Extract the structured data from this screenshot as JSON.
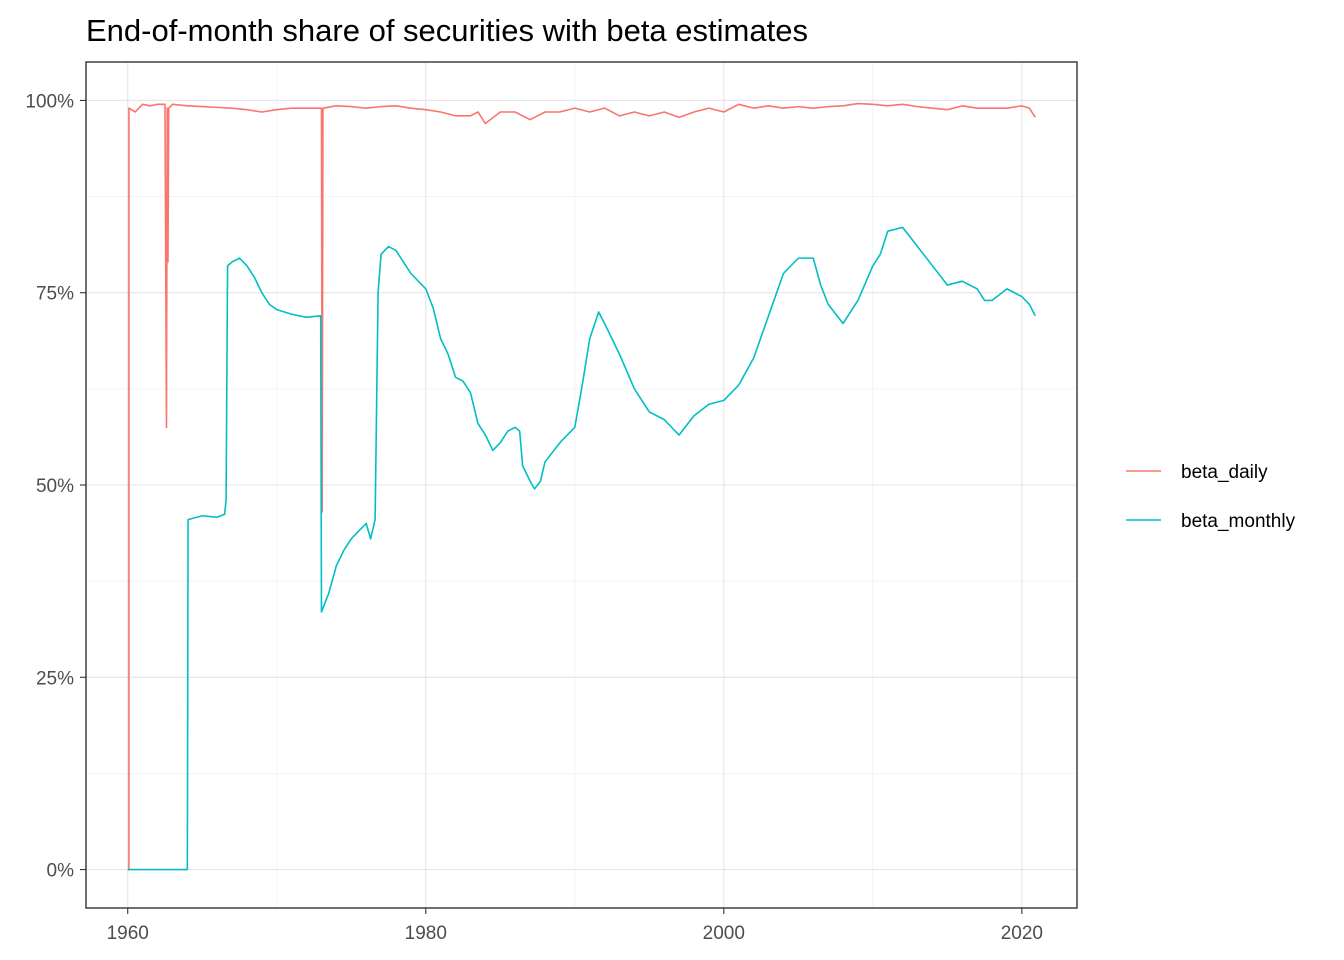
{
  "chart_data": {
    "type": "line",
    "title": "End-of-month share of securities with beta estimates",
    "xlabel": "",
    "ylabel": "",
    "xlim": [
      1957.2,
      2023.7
    ],
    "ylim": [
      -0.05,
      1.05
    ],
    "x_ticks": [
      1960,
      1980,
      2000,
      2020
    ],
    "x_tick_labels": [
      "1960",
      "1980",
      "2000",
      "2020"
    ],
    "y_ticks": [
      0,
      0.25,
      0.5,
      0.75,
      1.0
    ],
    "y_tick_labels": [
      "0%",
      "25%",
      "50%",
      "75%",
      "100%"
    ],
    "grid": true,
    "legend_position": "right",
    "series": [
      {
        "name": "beta_daily",
        "color": "#F8766D",
        "points": [
          [
            1960.0,
            0.0
          ],
          [
            1960.08,
            0.0
          ],
          [
            1960.08,
            0.99
          ],
          [
            1960.5,
            0.985
          ],
          [
            1961.0,
            0.995
          ],
          [
            1961.5,
            0.993
          ],
          [
            1962.0,
            0.995
          ],
          [
            1962.5,
            0.995
          ],
          [
            1962.6,
            0.575
          ],
          [
            1962.65,
            0.99
          ],
          [
            1962.7,
            0.79
          ],
          [
            1962.75,
            0.99
          ],
          [
            1963.0,
            0.995
          ],
          [
            1964.0,
            0.993
          ],
          [
            1965.0,
            0.992
          ],
          [
            1966.0,
            0.991
          ],
          [
            1967.0,
            0.99
          ],
          [
            1968.0,
            0.988
          ],
          [
            1969.0,
            0.985
          ],
          [
            1970.0,
            0.988
          ],
          [
            1971.0,
            0.99
          ],
          [
            1972.0,
            0.99
          ],
          [
            1972.9,
            0.99
          ],
          [
            1973.0,
            0.99
          ],
          [
            1973.05,
            0.465
          ],
          [
            1973.1,
            0.99
          ],
          [
            1974.0,
            0.993
          ],
          [
            1975.0,
            0.992
          ],
          [
            1976.0,
            0.99
          ],
          [
            1977.0,
            0.992
          ],
          [
            1978.0,
            0.993
          ],
          [
            1979.0,
            0.99
          ],
          [
            1980.0,
            0.988
          ],
          [
            1981.0,
            0.985
          ],
          [
            1982.0,
            0.98
          ],
          [
            1983.0,
            0.98
          ],
          [
            1983.5,
            0.985
          ],
          [
            1984.0,
            0.97
          ],
          [
            1985.0,
            0.985
          ],
          [
            1986.0,
            0.985
          ],
          [
            1987.0,
            0.975
          ],
          [
            1988.0,
            0.985
          ],
          [
            1989.0,
            0.985
          ],
          [
            1990.0,
            0.99
          ],
          [
            1991.0,
            0.985
          ],
          [
            1992.0,
            0.99
          ],
          [
            1993.0,
            0.98
          ],
          [
            1994.0,
            0.985
          ],
          [
            1995.0,
            0.98
          ],
          [
            1996.0,
            0.985
          ],
          [
            1997.0,
            0.978
          ],
          [
            1998.0,
            0.985
          ],
          [
            1999.0,
            0.99
          ],
          [
            2000.0,
            0.985
          ],
          [
            2001.0,
            0.995
          ],
          [
            2002.0,
            0.99
          ],
          [
            2003.0,
            0.993
          ],
          [
            2004.0,
            0.99
          ],
          [
            2005.0,
            0.992
          ],
          [
            2006.0,
            0.99
          ],
          [
            2007.0,
            0.992
          ],
          [
            2008.0,
            0.993
          ],
          [
            2009.0,
            0.996
          ],
          [
            2010.0,
            0.995
          ],
          [
            2011.0,
            0.993
          ],
          [
            2012.0,
            0.995
          ],
          [
            2013.0,
            0.992
          ],
          [
            2014.0,
            0.99
          ],
          [
            2015.0,
            0.988
          ],
          [
            2016.0,
            0.993
          ],
          [
            2017.0,
            0.99
          ],
          [
            2018.0,
            0.99
          ],
          [
            2019.0,
            0.99
          ],
          [
            2020.0,
            0.993
          ],
          [
            2020.5,
            0.99
          ],
          [
            2020.9,
            0.978
          ]
        ]
      },
      {
        "name": "beta_monthly",
        "color": "#00BFC4",
        "points": [
          [
            1960.0,
            0.0
          ],
          [
            1963.9,
            0.0
          ],
          [
            1964.0,
            0.0
          ],
          [
            1964.05,
            0.455
          ],
          [
            1965.0,
            0.46
          ],
          [
            1966.0,
            0.458
          ],
          [
            1966.5,
            0.462
          ],
          [
            1966.6,
            0.48
          ],
          [
            1966.7,
            0.785
          ],
          [
            1967.0,
            0.79
          ],
          [
            1967.5,
            0.795
          ],
          [
            1968.0,
            0.785
          ],
          [
            1968.5,
            0.77
          ],
          [
            1969.0,
            0.75
          ],
          [
            1969.5,
            0.735
          ],
          [
            1970.0,
            0.728
          ],
          [
            1971.0,
            0.722
          ],
          [
            1972.0,
            0.718
          ],
          [
            1972.9,
            0.72
          ],
          [
            1972.95,
            0.72
          ],
          [
            1973.0,
            0.335
          ],
          [
            1973.5,
            0.36
          ],
          [
            1974.0,
            0.395
          ],
          [
            1974.5,
            0.415
          ],
          [
            1975.0,
            0.43
          ],
          [
            1976.0,
            0.45
          ],
          [
            1976.3,
            0.43
          ],
          [
            1976.6,
            0.455
          ],
          [
            1976.8,
            0.75
          ],
          [
            1977.0,
            0.8
          ],
          [
            1977.5,
            0.81
          ],
          [
            1978.0,
            0.805
          ],
          [
            1978.5,
            0.79
          ],
          [
            1979.0,
            0.775
          ],
          [
            1979.5,
            0.765
          ],
          [
            1980.0,
            0.755
          ],
          [
            1980.5,
            0.73
          ],
          [
            1981.0,
            0.69
          ],
          [
            1981.5,
            0.67
          ],
          [
            1982.0,
            0.64
          ],
          [
            1982.5,
            0.635
          ],
          [
            1983.0,
            0.62
          ],
          [
            1983.5,
            0.58
          ],
          [
            1984.0,
            0.565
          ],
          [
            1984.5,
            0.545
          ],
          [
            1985.0,
            0.555
          ],
          [
            1985.5,
            0.57
          ],
          [
            1986.0,
            0.575
          ],
          [
            1986.3,
            0.57
          ],
          [
            1986.5,
            0.525
          ],
          [
            1987.0,
            0.505
          ],
          [
            1987.3,
            0.495
          ],
          [
            1987.7,
            0.505
          ],
          [
            1988.0,
            0.53
          ],
          [
            1989.0,
            0.555
          ],
          [
            1990.0,
            0.575
          ],
          [
            1990.5,
            0.63
          ],
          [
            1991.0,
            0.69
          ],
          [
            1991.6,
            0.725
          ],
          [
            1992.0,
            0.71
          ],
          [
            1993.0,
            0.67
          ],
          [
            1994.0,
            0.625
          ],
          [
            1995.0,
            0.595
          ],
          [
            1996.0,
            0.585
          ],
          [
            1997.0,
            0.565
          ],
          [
            1998.0,
            0.59
          ],
          [
            1999.0,
            0.605
          ],
          [
            2000.0,
            0.61
          ],
          [
            2001.0,
            0.63
          ],
          [
            2002.0,
            0.665
          ],
          [
            2003.0,
            0.72
          ],
          [
            2004.0,
            0.775
          ],
          [
            2005.0,
            0.795
          ],
          [
            2006.0,
            0.795
          ],
          [
            2006.5,
            0.76
          ],
          [
            2007.0,
            0.735
          ],
          [
            2008.0,
            0.71
          ],
          [
            2009.0,
            0.74
          ],
          [
            2010.0,
            0.785
          ],
          [
            2010.5,
            0.8
          ],
          [
            2011.0,
            0.83
          ],
          [
            2012.0,
            0.835
          ],
          [
            2013.0,
            0.81
          ],
          [
            2014.0,
            0.785
          ],
          [
            2015.0,
            0.76
          ],
          [
            2016.0,
            0.765
          ],
          [
            2017.0,
            0.755
          ],
          [
            2017.5,
            0.74
          ],
          [
            2018.0,
            0.74
          ],
          [
            2019.0,
            0.755
          ],
          [
            2020.0,
            0.745
          ],
          [
            2020.5,
            0.735
          ],
          [
            2020.9,
            0.72
          ]
        ]
      }
    ]
  }
}
